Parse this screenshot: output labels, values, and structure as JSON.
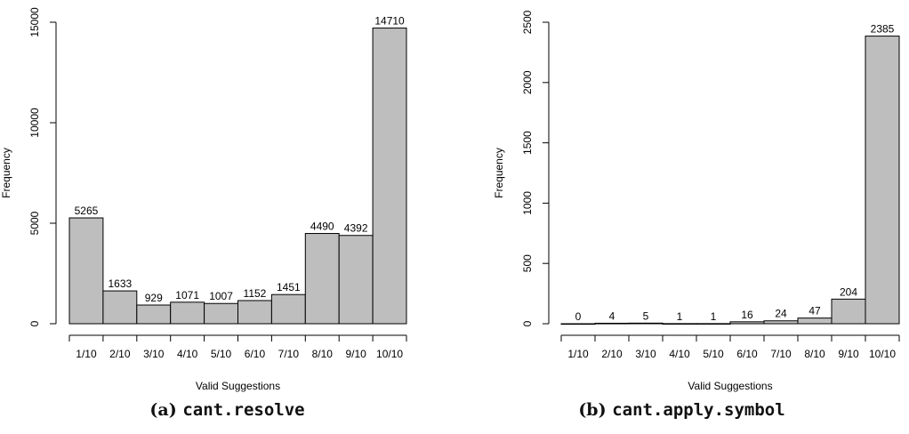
{
  "captions": [
    {
      "prefix": "(a)",
      "code": "cant.resolve"
    },
    {
      "prefix": "(b)",
      "code": "cant.apply.symbol"
    }
  ],
  "chart_data": [
    {
      "type": "bar",
      "xlabel": "Valid Suggestions",
      "ylabel": "Frequency",
      "categories": [
        "1/10",
        "2/10",
        "3/10",
        "4/10",
        "5/10",
        "6/10",
        "7/10",
        "8/10",
        "9/10",
        "10/10"
      ],
      "values": [
        5265,
        1633,
        929,
        1071,
        1007,
        1152,
        1451,
        4490,
        4392,
        14710
      ],
      "ylim": [
        0,
        15000
      ],
      "yticks": [
        0,
        5000,
        10000,
        15000
      ],
      "bar_color": "#bebebe",
      "grid": false
    },
    {
      "type": "bar",
      "xlabel": "Valid Suggestions",
      "ylabel": "Frequency",
      "categories": [
        "1/10",
        "2/10",
        "3/10",
        "4/10",
        "5/10",
        "6/10",
        "7/10",
        "8/10",
        "9/10",
        "10/10"
      ],
      "values": [
        0,
        4,
        5,
        1,
        1,
        16,
        24,
        47,
        204,
        2385
      ],
      "ylim": [
        0,
        2500
      ],
      "yticks": [
        0,
        500,
        1000,
        1500,
        2000,
        2500
      ],
      "bar_color": "#bebebe",
      "grid": false
    }
  ]
}
